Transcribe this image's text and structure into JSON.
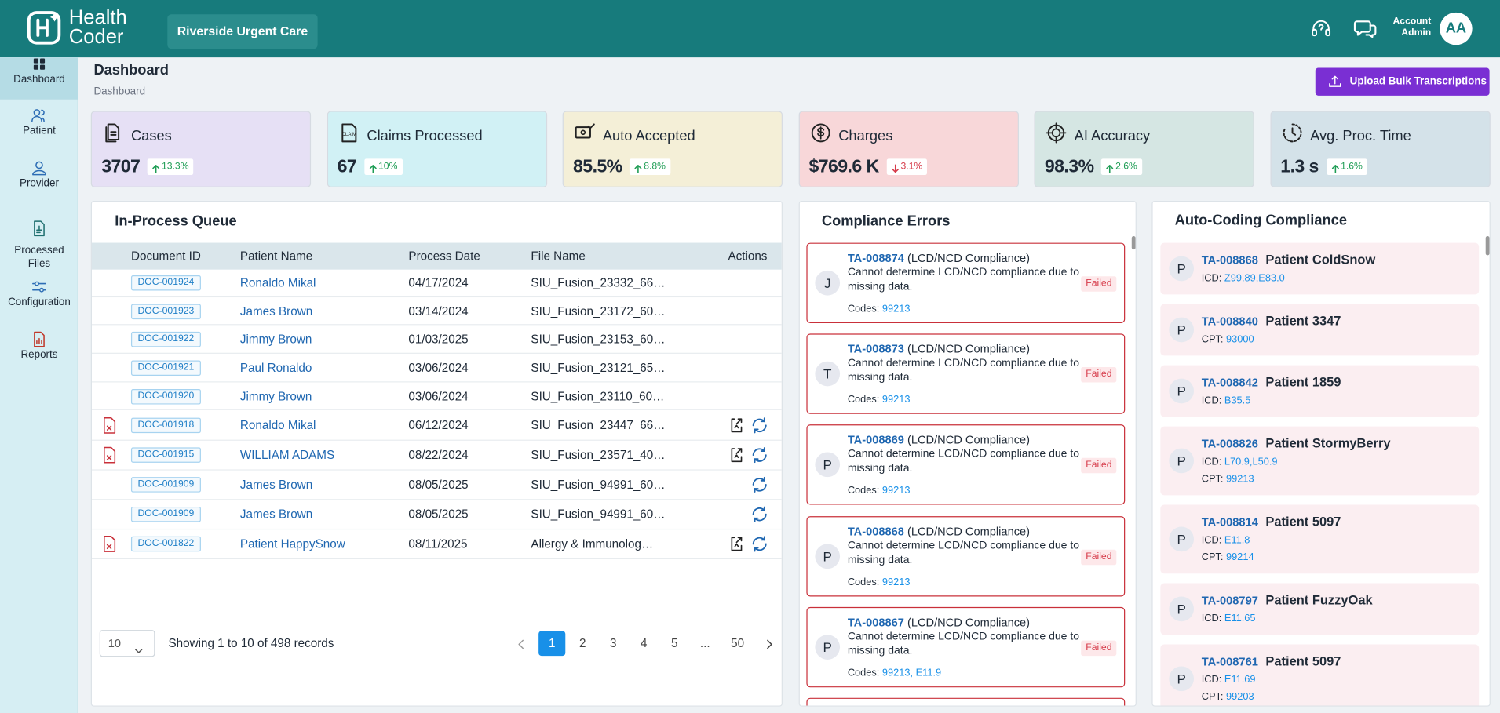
{
  "header": {
    "logo_line1": "Health",
    "logo_line2": "Coder",
    "clinic": "Riverside Urgent Care",
    "account_line1": "Account",
    "account_line2": "Admin",
    "avatar": "AA"
  },
  "sidebar": {
    "items": [
      "Dashboard",
      "Patient",
      "Provider",
      "Processed Files",
      "Configuration",
      "Reports"
    ],
    "active": 0
  },
  "page": {
    "title": "Dashboard",
    "breadcrumb": "Dashboard",
    "upload_button": "Upload Bulk Transcriptions"
  },
  "stats": [
    {
      "label": "Cases",
      "value": "3707",
      "change": "13.3%",
      "trend": "up",
      "color": "#e6e0f5"
    },
    {
      "label": "Claims Processed",
      "value": "67",
      "change": "10%",
      "trend": "up",
      "color": "#d1f1f5"
    },
    {
      "label": "Auto Accepted",
      "value": "85.5%",
      "change": "8.8%",
      "trend": "up",
      "color": "#f4efd7"
    },
    {
      "label": "Charges",
      "value": "$769.6 K",
      "change": "3.1%",
      "trend": "down",
      "color": "#f8d7d9"
    },
    {
      "label": "AI Accuracy",
      "value": "98.3%",
      "change": "2.6%",
      "trend": "up",
      "color": "#d5e6e3"
    },
    {
      "label": "Avg. Proc. Time",
      "value": "1.3 s",
      "change": "1.6%",
      "trend": "up",
      "color": "#d4e2e9"
    }
  ],
  "queue": {
    "title": "In-Process Queue",
    "columns": [
      "Document ID",
      "Patient Name",
      "Process Date",
      "File Name",
      "Actions"
    ],
    "rows": [
      {
        "doc_id": "DOC-001924",
        "patient": "Ronaldo Mikal",
        "date": "04/17/2024",
        "file": "SIU_Fusion_23332_66…",
        "error": false,
        "actions": []
      },
      {
        "doc_id": "DOC-001923",
        "patient": "James Brown",
        "date": "03/14/2024",
        "file": "SIU_Fusion_23172_60…",
        "error": false,
        "actions": []
      },
      {
        "doc_id": "DOC-001922",
        "patient": "Jimmy Brown",
        "date": "01/03/2025",
        "file": "SIU_Fusion_23153_60…",
        "error": false,
        "actions": []
      },
      {
        "doc_id": "DOC-001921",
        "patient": "Paul Ronaldo",
        "date": "03/06/2024",
        "file": "SIU_Fusion_23121_65…",
        "error": false,
        "actions": []
      },
      {
        "doc_id": "DOC-001920",
        "patient": "Jimmy Brown",
        "date": "03/06/2024",
        "file": "SIU_Fusion_23110_60…",
        "error": false,
        "actions": []
      },
      {
        "doc_id": "DOC-001918",
        "patient": "Ronaldo Mikal",
        "date": "06/12/2024",
        "file": "SIU_Fusion_23447_66…",
        "error": true,
        "actions": [
          "upload",
          "retry"
        ]
      },
      {
        "doc_id": "DOC-001915",
        "patient": "WILLIAM ADAMS",
        "date": "08/22/2024",
        "file": "SIU_Fusion_23571_40…",
        "error": true,
        "actions": [
          "upload",
          "retry"
        ]
      },
      {
        "doc_id": "DOC-001909",
        "patient": "James Brown",
        "date": "08/05/2025",
        "file": "SIU_Fusion_94991_60…",
        "error": false,
        "actions": [
          "retry"
        ]
      },
      {
        "doc_id": "DOC-001909",
        "patient": "James Brown",
        "date": "08/05/2025",
        "file": "SIU_Fusion_94991_60…",
        "error": false,
        "actions": [
          "retry"
        ]
      },
      {
        "doc_id": "DOC-001822",
        "patient": "Patient HappySnow",
        "date": "08/11/2025",
        "file": "Allergy & Immunolog…",
        "error": true,
        "actions": [
          "upload",
          "retry"
        ]
      }
    ],
    "page_size": "10",
    "summary": "Showing 1 to 10 of 498 records",
    "pages": [
      "1",
      "2",
      "3",
      "4",
      "5",
      "...",
      "50"
    ],
    "current_page": 0
  },
  "compliance": {
    "title": "Compliance Errors",
    "items": [
      {
        "initial": "J",
        "id": "TA-008874",
        "type": "(LCD/NCD Compliance)",
        "message": "Cannot determine LCD/NCD compliance due to missing data.",
        "codes_label": "Codes:",
        "codes": "99213",
        "status": "Failed"
      },
      {
        "initial": "T",
        "id": "TA-008873",
        "type": "(LCD/NCD Compliance)",
        "message": "Cannot determine LCD/NCD compliance due to missing data.",
        "codes_label": "Codes:",
        "codes": "99213",
        "status": "Failed"
      },
      {
        "initial": "P",
        "id": "TA-008869",
        "type": "(LCD/NCD Compliance)",
        "message": "Cannot determine LCD/NCD compliance due to missing data.",
        "codes_label": "Codes:",
        "codes": "99213",
        "status": "Failed"
      },
      {
        "initial": "P",
        "id": "TA-008868",
        "type": "(LCD/NCD Compliance)",
        "message": "Cannot determine LCD/NCD compliance due to missing data.",
        "codes_label": "Codes:",
        "codes": "99213",
        "status": "Failed"
      },
      {
        "initial": "P",
        "id": "TA-008867",
        "type": "(LCD/NCD Compliance)",
        "message": "Cannot determine LCD/NCD compliance due to missing data.",
        "codes_label": "Codes:",
        "codes": "99213, E11.9",
        "status": "Failed"
      }
    ]
  },
  "auto_coding": {
    "title": "Auto-Coding Compliance",
    "items": [
      {
        "initial": "P",
        "id": "TA-008868",
        "patient": "Patient ColdSnow",
        "codes": [
          {
            "label": "ICD:",
            "value": "Z99.89,E83.0"
          }
        ]
      },
      {
        "initial": "P",
        "id": "TA-008840",
        "patient": "Patient 3347",
        "codes": [
          {
            "label": "CPT:",
            "value": "93000"
          }
        ]
      },
      {
        "initial": "P",
        "id": "TA-008842",
        "patient": "Patient 1859",
        "codes": [
          {
            "label": "ICD:",
            "value": "B35.5"
          }
        ]
      },
      {
        "initial": "P",
        "id": "TA-008826",
        "patient": "Patient StormyBerry",
        "codes": [
          {
            "label": "ICD:",
            "value": "L70.9,L50.9"
          },
          {
            "label": "CPT:",
            "value": "99213"
          }
        ]
      },
      {
        "initial": "P",
        "id": "TA-008814",
        "patient": "Patient 5097",
        "codes": [
          {
            "label": "ICD:",
            "value": "E11.8"
          },
          {
            "label": "CPT:",
            "value": "99214"
          }
        ]
      },
      {
        "initial": "P",
        "id": "TA-008797",
        "patient": "Patient FuzzyOak",
        "codes": [
          {
            "label": "ICD:",
            "value": "E11.65"
          }
        ]
      },
      {
        "initial": "P",
        "id": "TA-008761",
        "patient": "Patient 5097",
        "codes": [
          {
            "label": "ICD:",
            "value": "E11.69"
          },
          {
            "label": "CPT:",
            "value": "99203"
          }
        ]
      }
    ]
  }
}
